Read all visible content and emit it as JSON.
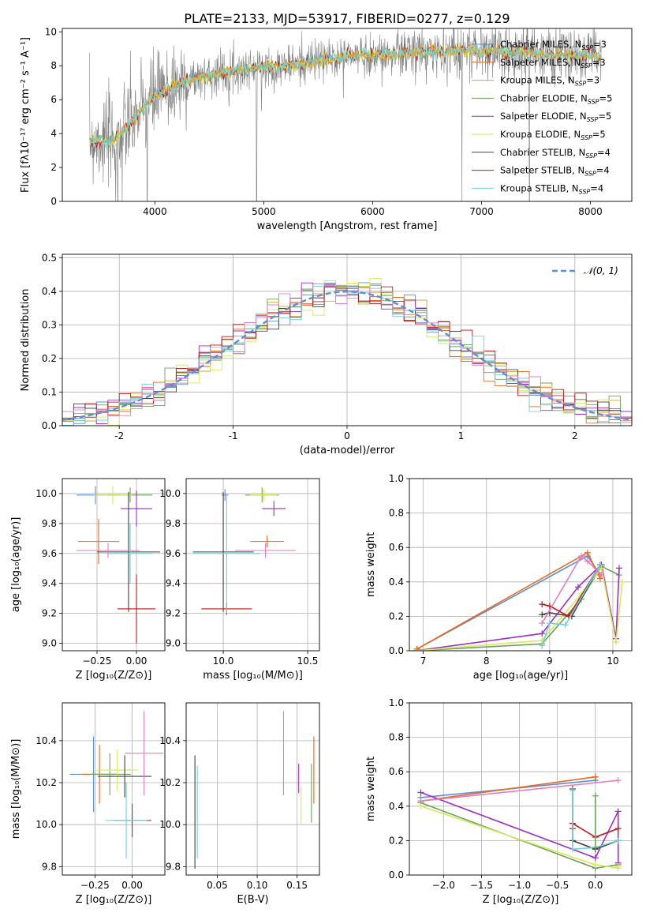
{
  "figure_title": "PLATE=2133, MJD=53917, FIBERID=0277, z=0.129",
  "colors": {
    "Chabrier MILES": "#5b8fd6",
    "Salpeter MILES": "#e86a1f",
    "Kroupa MILES": "#e8a020",
    "Chabrier ELODIE": "#6aa05a",
    "Salpeter ELODIE": "#9b30c0",
    "Kroupa ELODIE": "#d8e85a",
    "Chabrier STELIB": "#404040",
    "Salpeter STELIB": "#c01818",
    "Kroupa STELIB": "#70d0d8",
    "pink": "#e080c0",
    "gaussian": "#5b8fd6"
  },
  "chart_data": [
    {
      "id": "spectrum",
      "type": "line",
      "xlabel": "wavelength [Angstrom, rest frame]",
      "ylabel": "Flux [fλ10⁻¹⁷ erg cm⁻² s⁻¹ A⁻¹]",
      "xlim": [
        3150,
        8380
      ],
      "ylim": [
        0,
        10.2
      ],
      "xticks": [
        4000,
        5000,
        6000,
        7000,
        8000
      ],
      "yticks": [
        0,
        2,
        4,
        6,
        8,
        10
      ],
      "grid": false,
      "legend": "right",
      "legend_entries": [
        {
          "label": "Chabrier MILES, N",
          "sub": "SSP",
          "suffix": "=3"
        },
        {
          "label": "Salpeter MILES, N",
          "sub": "SSP",
          "suffix": "=3"
        },
        {
          "label": "Kroupa MILES, N",
          "sub": "SSP",
          "suffix": "=3"
        },
        {
          "label": "Chabrier ELODIE, N",
          "sub": "SSP",
          "suffix": "=5"
        },
        {
          "label": "Salpeter ELODIE, N",
          "sub": "SSP",
          "suffix": "=5"
        },
        {
          "label": "Kroupa ELODIE, N",
          "sub": "SSP",
          "suffix": "=5"
        },
        {
          "label": "Chabrier STELIB, N",
          "sub": "SSP",
          "suffix": "=4"
        },
        {
          "label": "Salpeter STELIB, N",
          "sub": "SSP",
          "suffix": "=4"
        },
        {
          "label": "Kroupa STELIB, N",
          "sub": "SSP",
          "suffix": "=4"
        }
      ],
      "continuum": {
        "x": [
          3400,
          3600,
          3700,
          3800,
          3900,
          4000,
          4200,
          4400,
          4600,
          4800,
          5000,
          5200,
          5400,
          5600,
          5800,
          6000,
          6200,
          6400,
          6600,
          6800,
          7000,
          7200,
          7400,
          7600,
          7800,
          8000,
          8100
        ],
        "y": [
          3.7,
          3.5,
          4.0,
          4.8,
          5.5,
          6.2,
          6.9,
          7.3,
          7.6,
          7.8,
          7.9,
          8.0,
          8.2,
          8.4,
          8.6,
          8.6,
          8.7,
          8.8,
          8.8,
          8.9,
          8.9,
          8.9,
          8.8,
          8.7,
          8.6,
          8.6,
          8.6
        ]
      },
      "data_drops": [
        3640,
        3660,
        3700,
        3930,
        4935,
        6820,
        7440
      ]
    },
    {
      "id": "residuals",
      "type": "histogram",
      "xlabel": "(data-model)/error",
      "ylabel": "Normed distribution",
      "xlim": [
        -2.5,
        2.5
      ],
      "ylim": [
        0,
        0.51
      ],
      "xticks": [
        -2,
        -1,
        0,
        1,
        2
      ],
      "yticks": [
        0.0,
        0.1,
        0.2,
        0.3,
        0.4,
        0.5
      ],
      "grid": true,
      "legend": "top-right",
      "legend_label": "𝒩(0, 1)",
      "bin_width": 0.1,
      "bins_start": -2.5,
      "gaussian": {
        "mean": 0,
        "sigma": 1
      }
    },
    {
      "id": "age-vs-Z",
      "type": "errorbar",
      "xlabel": "Z [log₁₀(Z/Z⊙)]",
      "ylabel": "age  [log₁₀(age/yr)]",
      "xlim": [
        -0.47,
        0.18
      ],
      "ylim": [
        8.95,
        10.1
      ],
      "xticks": [
        -0.25,
        0.0
      ],
      "xticklabels": [
        "−0.25",
        "0.00"
      ],
      "yticks": [
        9.0,
        9.2,
        9.4,
        9.6,
        9.8,
        10.0
      ],
      "points": [
        {
          "c": "Chabrier MILES",
          "x": -0.26,
          "xe": 0.12,
          "y": 9.99,
          "ye": 0.06
        },
        {
          "c": "Salpeter MILES",
          "x": -0.24,
          "xe": 0.13,
          "y": 9.68,
          "ye": 0.15
        },
        {
          "c": "Chabrier ELODIE",
          "x": -0.04,
          "xe": 0.14,
          "y": 9.99,
          "ye": 0.05
        },
        {
          "c": "Salpeter ELODIE",
          "x": 0.0,
          "xe": 0.1,
          "y": 9.9,
          "ye": 0.12
        },
        {
          "c": "Kroupa ELODIE",
          "x": -0.15,
          "xe": 0.12,
          "y": 9.99,
          "ye": 0.06
        },
        {
          "c": "Chabrier STELIB",
          "x": -0.05,
          "xe": 0.2,
          "y": 9.61,
          "ye": 0.4
        },
        {
          "c": "Salpeter STELIB",
          "x": 0.0,
          "xe": 0.12,
          "y": 9.23,
          "ye": 0.23
        },
        {
          "c": "Kroupa STELIB",
          "x": -0.04,
          "xe": 0.14,
          "y": 9.6,
          "ye": 0.2
        },
        {
          "c": "pink",
          "x": -0.18,
          "xe": 0.2,
          "y": 9.62,
          "ye": 0.05
        }
      ]
    },
    {
      "id": "age-vs-mass",
      "type": "errorbar",
      "xlabel": "mass [log₁₀(M/M⊙)]",
      "ylabel": "",
      "xlim": [
        9.78,
        10.57
      ],
      "ylim": [
        8.95,
        10.1
      ],
      "xticks": [
        10.0,
        10.5
      ],
      "xticklabels": [
        "10.0",
        "10.5"
      ],
      "yticks": [
        9.0,
        9.2,
        9.4,
        9.6,
        9.8,
        10.0
      ],
      "points": [
        {
          "c": "Chabrier MILES",
          "x": 10.01,
          "xe": 0.02,
          "y": 9.99,
          "ye": 0.04
        },
        {
          "c": "Salpeter MILES",
          "x": 10.26,
          "xe": 0.1,
          "y": 9.68,
          "ye": 0.04
        },
        {
          "c": "Chabrier ELODIE",
          "x": 10.23,
          "xe": 0.1,
          "y": 9.99,
          "ye": 0.05
        },
        {
          "c": "Salpeter ELODIE",
          "x": 10.3,
          "xe": 0.07,
          "y": 9.9,
          "ye": 0.05
        },
        {
          "c": "Kroupa ELODIE",
          "x": 10.24,
          "xe": 0.08,
          "y": 9.99,
          "ye": 0.04
        },
        {
          "c": "Chabrier STELIB",
          "x": 10.0,
          "xe": 0.18,
          "y": 9.61,
          "ye": 0.4
        },
        {
          "c": "Salpeter STELIB",
          "x": 10.02,
          "xe": 0.15,
          "y": 9.23,
          "ye": 0.04
        },
        {
          "c": "Kroupa STELIB",
          "x": 10.02,
          "xe": 0.2,
          "y": 9.6,
          "ye": 0.4
        },
        {
          "c": "pink",
          "x": 10.25,
          "xe": 0.18,
          "y": 9.62,
          "ye": 0.05
        }
      ]
    },
    {
      "id": "mass-weight-vs-age",
      "type": "line",
      "xlabel": "age  [log₁₀(age/yr)]",
      "ylabel": "mass weight",
      "xlim": [
        6.78,
        10.3
      ],
      "ylim": [
        0,
        1.0
      ],
      "xticks": [
        7,
        8,
        9,
        10
      ],
      "xticklabels": [
        "7",
        "8",
        "9",
        "10"
      ],
      "yticks": [
        0.0,
        0.2,
        0.4,
        0.6,
        0.8,
        1.0
      ],
      "grid": true,
      "series": [
        {
          "c": "Chabrier MILES",
          "x": [
            6.9,
            9.6,
            9.8
          ],
          "y": [
            0.01,
            0.55,
            0.44
          ]
        },
        {
          "c": "Salpeter MILES",
          "x": [
            6.9,
            9.6,
            9.8
          ],
          "y": [
            0.01,
            0.57,
            0.42
          ]
        },
        {
          "c": "Chabrier ELODIE",
          "x": [
            6.88,
            8.88,
            9.5,
            9.82,
            10.1
          ],
          "y": [
            0.0,
            0.04,
            0.3,
            0.49,
            0.44
          ]
        },
        {
          "c": "Salpeter ELODIE",
          "x": [
            6.88,
            8.88,
            9.45,
            9.82,
            10.05,
            10.1
          ],
          "y": [
            0.0,
            0.1,
            0.37,
            0.5,
            0.07,
            0.48
          ]
        },
        {
          "c": "Kroupa ELODIE",
          "x": [
            6.88,
            8.88,
            9.5,
            9.82,
            10.05,
            10.15
          ],
          "y": [
            0.0,
            0.06,
            0.33,
            0.48,
            0.05,
            0.4
          ]
        },
        {
          "c": "Chabrier STELIB",
          "x": [
            8.88,
            9.0,
            9.35,
            9.8
          ],
          "y": [
            0.21,
            0.22,
            0.2,
            0.5
          ]
        },
        {
          "c": "Salpeter STELIB",
          "x": [
            8.88,
            9.0,
            9.3,
            9.8
          ],
          "y": [
            0.27,
            0.26,
            0.2,
            0.5
          ]
        },
        {
          "c": "Kroupa STELIB",
          "x": [
            8.88,
            9.0,
            9.25,
            9.8
          ],
          "y": [
            0.03,
            0.16,
            0.15,
            0.5
          ]
        },
        {
          "c": "pink",
          "x": [
            8.88,
            9.5,
            9.6,
            9.82
          ],
          "y": [
            0.16,
            0.55,
            0.52,
            0.44
          ]
        }
      ]
    },
    {
      "id": "mass-vs-Z",
      "type": "errorbar",
      "xlabel": "Z [log₁₀(Z/Z⊙)]",
      "ylabel": "mass [log₁₀(M/M⊙)]",
      "xlim": [
        -0.47,
        0.22
      ],
      "ylim": [
        9.76,
        10.58
      ],
      "xticks": [
        -0.25,
        0.0
      ],
      "xticklabels": [
        "−0.25",
        "0.00"
      ],
      "yticks": [
        9.8,
        10.0,
        10.2,
        10.4
      ],
      "points": [
        {
          "c": "Chabrier MILES",
          "x": -0.26,
          "xe": 0.16,
          "y": 10.24,
          "ye": 0.18
        },
        {
          "c": "Salpeter MILES",
          "x": -0.22,
          "xe": 0.12,
          "y": 10.24,
          "ye": 0.14
        },
        {
          "c": "Chabrier ELODIE",
          "x": -0.15,
          "xe": 0.14,
          "y": 10.24,
          "ye": 0.1
        },
        {
          "c": "Kroupa ELODIE",
          "x": -0.1,
          "xe": 0.14,
          "y": 10.26,
          "ye": 0.1
        },
        {
          "c": "Chabrier STELIB",
          "x": -0.05,
          "xe": 0.18,
          "y": 10.23,
          "ye": 0.1
        },
        {
          "c": "Salpeter STELIB",
          "x": 0.0,
          "xe": 0.13,
          "y": 10.02,
          "ye": 0.08
        },
        {
          "c": "Kroupa STELIB",
          "x": -0.04,
          "xe": 0.14,
          "y": 10.02,
          "ye": 0.18
        },
        {
          "c": "pink",
          "x": 0.08,
          "xe": 0.13,
          "y": 10.34,
          "ye": 0.2
        }
      ]
    },
    {
      "id": "mass-vs-EBV",
      "type": "errorbar",
      "xlabel": "E(B-V)",
      "ylabel": "",
      "xlim": [
        0.011,
        0.178
      ],
      "ylim": [
        9.76,
        10.58
      ],
      "xticks": [
        0.05,
        0.1,
        0.15
      ],
      "xticklabels": [
        "0.05",
        "0.10",
        "0.15"
      ],
      "yticks": [
        9.8,
        10.0,
        10.2,
        10.4
      ],
      "points": [
        {
          "c": "Chabrier STELIB",
          "x": 0.022,
          "xe": 0,
          "y": 10.06,
          "ye": 0.27
        },
        {
          "c": "Kroupa STELIB",
          "x": 0.025,
          "xe": 0,
          "y": 10.06,
          "ye": 0.22
        },
        {
          "c": "pink",
          "x": 0.133,
          "xe": 0,
          "y": 10.34,
          "ye": 0.2
        },
        {
          "c": "Salpeter ELODIE",
          "x": 0.152,
          "xe": 0,
          "y": 10.22,
          "ye": 0.07
        },
        {
          "c": "Kroupa ELODIE",
          "x": 0.155,
          "xe": 0,
          "y": 10.09,
          "ye": 0.09
        },
        {
          "c": "Chabrier ELODIE",
          "x": 0.168,
          "xe": 0,
          "y": 10.15,
          "ye": 0.14
        },
        {
          "c": "Salpeter MILES",
          "x": 0.171,
          "xe": 0,
          "y": 10.26,
          "ye": 0.16
        }
      ]
    },
    {
      "id": "mass-weight-vs-Z",
      "type": "line",
      "xlabel": "Z [log₁₀(Z/Z⊙)]",
      "ylabel": "mass weight",
      "xlim": [
        -2.45,
        0.48
      ],
      "ylim": [
        0,
        1.0
      ],
      "xticks": [
        -2.0,
        -1.5,
        -1.0,
        -0.5,
        0.0
      ],
      "xticklabels": [
        "−2.0",
        "−1.5",
        "−1.0",
        "−0.5",
        "0.0"
      ],
      "yticks": [
        0.0,
        0.2,
        0.4,
        0.6,
        0.8,
        1.0
      ],
      "grid": true,
      "series": [
        {
          "c": "Chabrier MILES",
          "x": [
            -2.3,
            0.0,
            0.0
          ],
          "y": [
            0.45,
            0.55,
            0.55
          ]
        },
        {
          "c": "Salpeter MILES",
          "x": [
            -2.3,
            0.0,
            0.0
          ],
          "y": [
            0.43,
            0.57,
            0.57
          ]
        },
        {
          "c": "Chabrier ELODIE",
          "x": [
            -2.3,
            0.0,
            0.3,
            0.3
          ],
          "y": [
            0.42,
            0.04,
            0.06,
            0.06
          ]
        },
        {
          "c": "Salpeter ELODIE",
          "x": [
            -2.3,
            0.0,
            0.3,
            0.3
          ],
          "y": [
            0.48,
            0.1,
            0.37,
            0.07
          ]
        },
        {
          "c": "Kroupa ELODIE",
          "x": [
            -2.3,
            0.0,
            0.3,
            0.3
          ],
          "y": [
            0.4,
            0.06,
            0.04,
            0.05
          ]
        },
        {
          "c": "Chabrier STELIB",
          "x": [
            -0.3,
            -0.3,
            0.0,
            0.3
          ],
          "y": [
            0.5,
            0.2,
            0.15,
            0.2
          ]
        },
        {
          "c": "Salpeter STELIB",
          "x": [
            -0.3,
            -0.3,
            0.0,
            0.3
          ],
          "y": [
            0.27,
            0.3,
            0.22,
            0.27
          ]
        },
        {
          "c": "Kroupa STELIB",
          "x": [
            -0.3,
            -0.3,
            0.0,
            0.3
          ],
          "y": [
            0.49,
            0.15,
            0.16,
            0.2
          ]
        },
        {
          "c": "Chabrier ELODIE",
          "x": [
            0.0,
            0.0
          ],
          "y": [
            0.46,
            0.16
          ]
        },
        {
          "c": "pink",
          "x": [
            -2.3,
            0.3
          ],
          "y": [
            0.43,
            0.55
          ]
        }
      ]
    }
  ]
}
